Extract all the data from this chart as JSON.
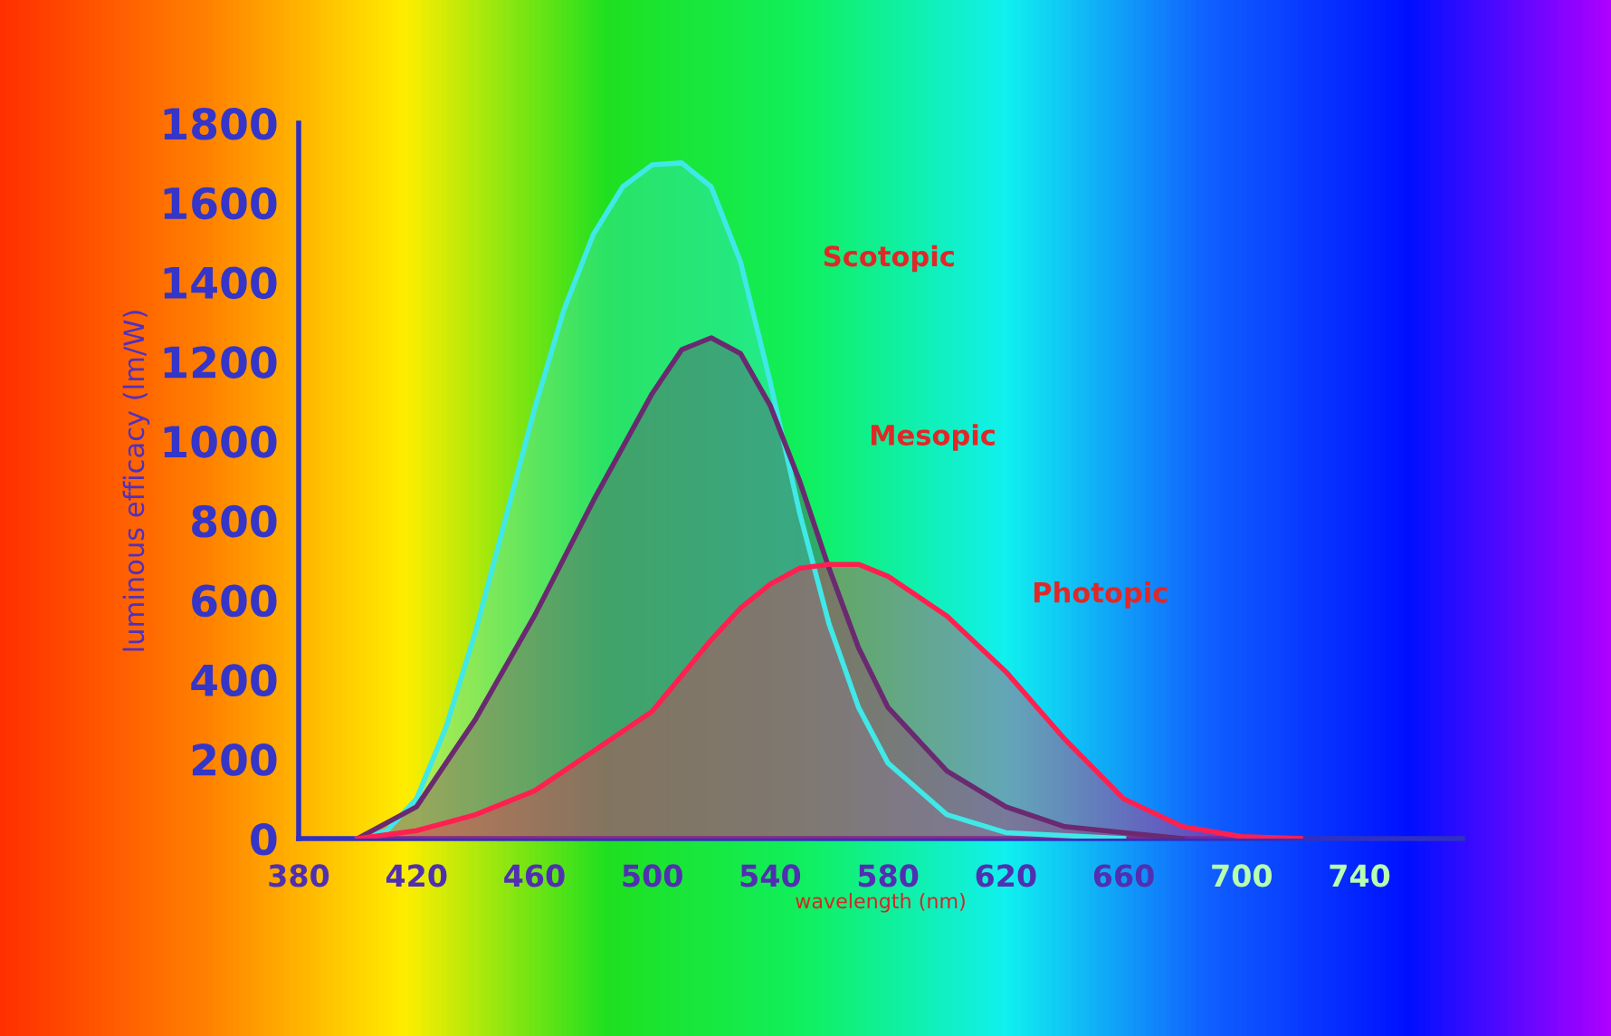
{
  "chart_data": {
    "type": "area",
    "xlabel": "wavelength (nm)",
    "ylabel": "luminous efficacy (lm/W)",
    "xlim": [
      380,
      775
    ],
    "xticks": [
      380,
      420,
      460,
      500,
      540,
      580,
      620,
      660,
      700,
      740
    ],
    "ylim": [
      0,
      1800
    ],
    "yticks": [
      0,
      200,
      400,
      600,
      800,
      1000,
      1200,
      1400,
      1600,
      1800
    ],
    "grid": false,
    "legend": false,
    "series": [
      {
        "name": "Scotopic",
        "color": "#40e8e8",
        "x": [
          400,
          410,
          420,
          430,
          440,
          450,
          460,
          470,
          480,
          490,
          500,
          510,
          520,
          530,
          540,
          550,
          560,
          570,
          580,
          600,
          620,
          660
        ],
        "values": [
          0,
          20,
          100,
          280,
          520,
          800,
          1080,
          1330,
          1520,
          1640,
          1695,
          1700,
          1640,
          1450,
          1150,
          820,
          540,
          330,
          190,
          60,
          15,
          0
        ]
      },
      {
        "name": "Mesopic",
        "color": "#6a2a70",
        "x": [
          400,
          420,
          440,
          460,
          480,
          500,
          510,
          520,
          530,
          540,
          550,
          560,
          570,
          580,
          600,
          620,
          640,
          680
        ],
        "values": [
          0,
          80,
          300,
          560,
          850,
          1120,
          1230,
          1260,
          1220,
          1090,
          900,
          680,
          480,
          330,
          170,
          80,
          30,
          0
        ]
      },
      {
        "name": "Photopic",
        "color": "#ff2050",
        "x": [
          400,
          420,
          440,
          460,
          480,
          500,
          520,
          530,
          540,
          550,
          560,
          570,
          580,
          600,
          620,
          640,
          660,
          680,
          700,
          720
        ],
        "values": [
          0,
          20,
          60,
          120,
          220,
          320,
          500,
          580,
          640,
          680,
          690,
          690,
          660,
          560,
          420,
          250,
          100,
          30,
          5,
          0
        ]
      }
    ]
  }
}
